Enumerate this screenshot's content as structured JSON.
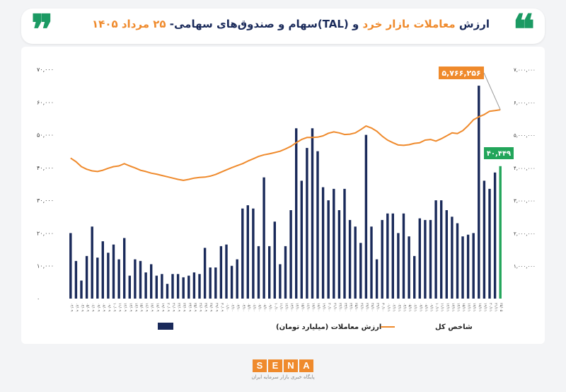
{
  "header": {
    "title_part1": "ارزش ",
    "title_part2": "معاملات بازار خرد",
    "title_part3": " و (TAL)سهام و صندوق‌های سهامی- ",
    "title_part4": "۲۵ مرداد ۱۴۰۵",
    "quote_open": "❝",
    "quote_close": "❞"
  },
  "logo": {
    "letters": [
      "S",
      "E",
      "N",
      "A"
    ],
    "subtitle": "پایگاه خبری بازار سرمایه ایران"
  },
  "colors": {
    "bar": "#1a2a5a",
    "last_bar": "#22a55a",
    "index_line": "#ef8a2c",
    "accent": "#ef8a2c",
    "green": "#1b9a63"
  },
  "chart_data": {
    "type": "bar",
    "left_axis": {
      "ticks": [
        "۰",
        "۱۰,۰۰۰",
        "۲۰,۰۰۰",
        "۳۰,۰۰۰",
        "۴۰,۰۰۰",
        "۵۰,۰۰۰",
        "۶۰,۰۰۰",
        "۷۰,۰۰۰"
      ],
      "ylim": [
        0,
        70000
      ]
    },
    "right_axis": {
      "ticks": [
        "۱,۰۰۰,۰۰۰",
        "۲,۰۰۰,۰۰۰",
        "۳,۰۰۰,۰۰۰",
        "۴,۰۰۰,۰۰۰",
        "۵,۰۰۰,۰۰۰",
        "۶,۰۰۰,۰۰۰",
        "۷,۰۰۰,۰۰۰"
      ],
      "ylim": [
        0,
        7000000
      ]
    },
    "series": [
      {
        "name": "ارزش معاملات (میلیارد تومان)",
        "type": "bar",
        "values": [
          20000,
          11500,
          5500,
          13000,
          22000,
          12500,
          17500,
          14000,
          16500,
          12000,
          18500,
          7000,
          12000,
          11500,
          8000,
          10500,
          7000,
          7500,
          4500,
          7500,
          7500,
          6500,
          7000,
          8000,
          7500,
          15500,
          9500,
          9500,
          16000,
          16500,
          10000,
          12000,
          27500,
          28500,
          27500,
          16000,
          37000,
          16000,
          23500,
          10500,
          16000,
          27000,
          52000,
          36000,
          46000,
          52000,
          45000,
          34000,
          30000,
          33500,
          27000,
          33500,
          24000,
          22000,
          17000,
          50000,
          22000,
          12000,
          24000,
          26000,
          26000,
          20000,
          26000,
          19000,
          13000,
          24500,
          24000,
          24000,
          30000,
          30000,
          27000,
          25000,
          23000,
          19000,
          19500,
          20000,
          65000,
          36000,
          33500,
          38500,
          40449
        ]
      },
      {
        "name": "شاخص کل",
        "type": "line",
        "values": [
          4290000,
          4180000,
          4030000,
          3950000,
          3900000,
          3880000,
          3920000,
          3980000,
          4030000,
          4050000,
          4120000,
          4050000,
          3990000,
          3920000,
          3880000,
          3830000,
          3800000,
          3760000,
          3720000,
          3680000,
          3640000,
          3610000,
          3640000,
          3680000,
          3700000,
          3710000,
          3740000,
          3790000,
          3860000,
          3930000,
          4000000,
          4060000,
          4120000,
          4200000,
          4270000,
          4340000,
          4390000,
          4420000,
          4460000,
          4500000,
          4570000,
          4650000,
          4760000,
          4860000,
          4920000,
          4920000,
          4930000,
          4970000,
          5050000,
          5090000,
          5060000,
          5010000,
          5020000,
          5060000,
          5160000,
          5270000,
          5210000,
          5110000,
          4960000,
          4840000,
          4760000,
          4690000,
          4680000,
          4700000,
          4740000,
          4760000,
          4840000,
          4860000,
          4810000,
          4880000,
          4970000,
          5060000,
          5040000,
          5130000,
          5280000,
          5460000,
          5550000,
          5620000,
          5720000,
          5740000,
          5766256
        ]
      }
    ],
    "annotations": {
      "index_value": "۵,۷۶۶,۲۵۶",
      "trade_value": "۴۰,۴۴۹"
    },
    "x_labels": [
      "۰۲/۰۹",
      "۰۳/۰۹",
      "۰۴/۰۹",
      "۰۵/۰۹",
      "۰۶/۰۹",
      "۰۷/۰۹",
      "۰۸/۰۹",
      "۰۹/۰۹",
      "۱۰/۰۹",
      "۱۱/۰۹",
      "۱۲/۰۹",
      "۱۳/۰۹",
      "۱۴/۰۹",
      "۱۵/۰۹",
      "۱۶/۰۹",
      "۱۷/۰۹",
      "۱۸/۰۹",
      "۱۹/۰۹",
      "۲۰/۰۹",
      "۲۱/۰۹",
      "۲۲/۰۹",
      "۲۳/۰۹",
      "۲۴/۰۹",
      "۲۵/۰۹",
      "۲۶/۰۹",
      "۲۷/۰۹",
      "۲۸/۰۹",
      "۲۹/۰۹",
      "۳۰/۰۹",
      "۰۱/۱۰",
      "۰۲/۱۰",
      "۰۳/۱۰",
      "۰۴/۱۰",
      "۰۵/۱۰",
      "۰۶/۱۰",
      "۰۷/۱۰",
      "۰۸/۱۰",
      "۰۹/۱۰",
      "۱۰/۱۰",
      "۱۱/۱۰",
      "۱۲/۱۰",
      "۱۳/۱۰",
      "۱۴/۱۰",
      "۱۵/۱۰",
      "۱۶/۱۰",
      "۱۷/۱۰",
      "۱۸/۱۰",
      "۱۹/۱۰",
      "۲۰/۱۰",
      "۲۱/۱۰",
      "۲۲/۱۰",
      "۲۳/۱۰",
      "۲۴/۱۰",
      "۲۵/۱۰",
      "۲۶/۱۰",
      "۲۷/۱۰",
      "۲۸/۱۰",
      "۲۹/۱۰",
      "۳۰/۱۰",
      "۰۱/۱۱",
      "۰۲/۱۱",
      "۰۳/۱۱",
      "۰۴/۱۱",
      "۰۵/۱۱",
      "۰۶/۱۱",
      "۰۷/۱۱",
      "۰۸/۱۱",
      "۰۹/۱۱",
      "۱۰/۱۱",
      "۱۱/۱۱",
      "۱۲/۱۱",
      "۱۳/۱۱",
      "۱۴/۱۱",
      "۱۵/۱۱",
      "۱۶/۱۱",
      "۱۷/۱۱",
      "۱۸/۱۱",
      "۱۹/۱۱",
      "۲۰/۱۱",
      "۲۱/۱۱",
      "۲۵/۰۵"
    ],
    "legend": [
      "ارزش معاملات (میلیارد تومان)",
      "شاخص کل"
    ]
  }
}
